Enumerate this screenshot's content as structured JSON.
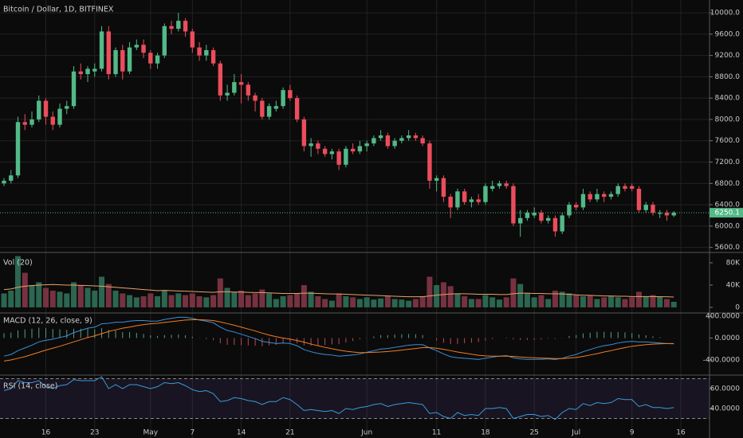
{
  "chart_data": [
    {
      "type": "candlestick",
      "title": "Bitcoin / Dollar, 1D, BITFINEX",
      "categories": [
        null,
        null,
        null,
        null,
        null,
        null,
        "16",
        null,
        null,
        null,
        null,
        null,
        null,
        "23",
        null,
        null,
        null,
        null,
        null,
        null,
        null,
        "May",
        null,
        null,
        null,
        null,
        null,
        "7",
        null,
        null,
        null,
        null,
        null,
        null,
        "14",
        null,
        null,
        null,
        null,
        null,
        null,
        "21",
        null,
        null,
        null,
        null,
        null,
        null,
        null,
        null,
        null,
        null,
        "Jun",
        null,
        null,
        null,
        null,
        null,
        null,
        null,
        null,
        null,
        "11",
        null,
        null,
        null,
        null,
        null,
        null,
        "18",
        null,
        null,
        null,
        null,
        null,
        null,
        "25",
        null,
        null,
        null,
        null,
        null,
        "Jul",
        null,
        null,
        null,
        null,
        null,
        null,
        null,
        "9",
        null,
        null,
        null,
        null,
        null,
        null,
        "16",
        null,
        null,
        null,
        null
      ],
      "open": [
        6800,
        6850,
        6950,
        7950,
        7900,
        8000,
        8350,
        8050,
        7900,
        8200,
        8250,
        8900,
        8850,
        8900,
        8950,
        9650,
        8850,
        9300,
        8900,
        9350,
        9400,
        9250,
        9050,
        9200,
        9750,
        9700,
        9850,
        9650,
        9350,
        9200,
        9300,
        9050,
        8450,
        8500,
        8700,
        8650,
        8450,
        8350,
        8050,
        8200,
        8250,
        8550,
        8400,
        8000,
        7500,
        7550,
        7450,
        7350,
        7400,
        7150,
        7450,
        7400,
        7500,
        7550,
        7650,
        7700,
        7500,
        7600,
        7650,
        7700,
        7650,
        7550,
        6850,
        6900,
        6550,
        6350,
        6650,
        6450,
        6500,
        6450,
        6700,
        6750,
        6800,
        6750,
        6050,
        6150,
        6200,
        6250,
        6100,
        6150,
        5900,
        6200,
        6400,
        6350,
        6600,
        6500,
        6600,
        6550,
        6600,
        6750,
        6750,
        6700,
        6300,
        6400,
        6230,
        6250,
        6200,
        null,
        null,
        null,
        null,
        null
      ],
      "high": [
        6900,
        7050,
        8050,
        8100,
        8150,
        8450,
        8400,
        8150,
        8300,
        8350,
        9000,
        9050,
        9000,
        9050,
        9750,
        9750,
        9350,
        9400,
        9450,
        9500,
        9500,
        9300,
        9250,
        9800,
        9850,
        10000,
        9900,
        9700,
        9450,
        9400,
        9350,
        9100,
        8650,
        8850,
        8850,
        8700,
        8500,
        8400,
        8300,
        8350,
        8600,
        8650,
        8450,
        8050,
        7650,
        7600,
        7500,
        7450,
        7450,
        7500,
        7550,
        7600,
        7600,
        7700,
        7800,
        7750,
        7650,
        7700,
        7800,
        7750,
        7700,
        7600,
        6950,
        6950,
        6600,
        6700,
        6700,
        6550,
        6600,
        6800,
        6850,
        6850,
        6850,
        6800,
        6300,
        6300,
        6350,
        6300,
        6200,
        6200,
        6250,
        6450,
        6450,
        6700,
        6650,
        6700,
        6650,
        6650,
        6800,
        6800,
        6800,
        6750,
        6450,
        6450,
        6300,
        6300,
        6280,
        null,
        null,
        null,
        null,
        null
      ],
      "low": [
        6750,
        6800,
        6900,
        7800,
        7850,
        7950,
        7900,
        7800,
        7850,
        8100,
        8200,
        8750,
        8700,
        8800,
        8900,
        8750,
        8800,
        8750,
        8850,
        9300,
        9150,
        8950,
        8950,
        9150,
        9600,
        9650,
        9550,
        9250,
        9100,
        9100,
        9000,
        8350,
        8350,
        8450,
        8300,
        8350,
        8150,
        8000,
        8000,
        8150,
        8200,
        8350,
        7950,
        7400,
        7300,
        7350,
        7300,
        7250,
        7050,
        7100,
        7350,
        7350,
        7400,
        7500,
        7600,
        7450,
        7450,
        7550,
        7600,
        7600,
        7500,
        6700,
        6650,
        6450,
        6150,
        6300,
        6400,
        6350,
        6400,
        6400,
        6650,
        6700,
        6700,
        6000,
        5800,
        6100,
        6150,
        6050,
        6050,
        5800,
        5850,
        6150,
        6300,
        6300,
        6450,
        6450,
        6450,
        6500,
        6550,
        6650,
        6650,
        6250,
        6250,
        6200,
        6150,
        6100,
        6170,
        null,
        null,
        null,
        null,
        null
      ],
      "close": [
        6850,
        6950,
        7950,
        7900,
        8000,
        8350,
        8050,
        7900,
        8200,
        8250,
        8900,
        8850,
        8950,
        8950,
        9650,
        8850,
        9300,
        8900,
        9350,
        9400,
        9250,
        9050,
        9200,
        9750,
        9700,
        9850,
        9650,
        9350,
        9200,
        9300,
        9050,
        8450,
        8500,
        8700,
        8650,
        8450,
        8350,
        8050,
        8250,
        8250,
        8550,
        8400,
        8000,
        7500,
        7550,
        7450,
        7350,
        7400,
        7150,
        7450,
        7400,
        7500,
        7550,
        7650,
        7700,
        7500,
        7600,
        7650,
        7700,
        7650,
        7550,
        6850,
        6900,
        6550,
        6350,
        6650,
        6450,
        6500,
        6450,
        6750,
        6750,
        6800,
        6750,
        6050,
        6150,
        6250,
        6250,
        6100,
        6150,
        5900,
        6200,
        6400,
        6350,
        6600,
        6500,
        6600,
        6550,
        6600,
        6750,
        6700,
        6700,
        6300,
        6400,
        6250,
        6250,
        6200,
        6250,
        null,
        null,
        null,
        null,
        null
      ],
      "up_color": "#53b987",
      "down_color": "#eb4d5c",
      "last_price": 6250.1,
      "ylim": [
        5520,
        10240
      ],
      "yticks": [
        {
          "value": 5600,
          "label": "5600.0"
        },
        {
          "value": 6000,
          "label": "6000.0"
        },
        {
          "value": 6400,
          "label": "6400.0"
        },
        {
          "value": 6800,
          "label": "6800.0"
        },
        {
          "value": 7200,
          "label": "7200.0"
        },
        {
          "value": 7600,
          "label": "7600.0"
        },
        {
          "value": 8000,
          "label": "8000.0"
        },
        {
          "value": 8400,
          "label": "8400.0"
        },
        {
          "value": 8800,
          "label": "8800.0"
        },
        {
          "value": 9200,
          "label": "9200.0"
        },
        {
          "value": 9600,
          "label": "9600.0"
        },
        {
          "value": 10000,
          "label": "10000.0"
        }
      ],
      "grid": true
    },
    {
      "type": "volume",
      "title": "Vol (20)",
      "values": [
        25000,
        30000,
        92000,
        62000,
        40000,
        45000,
        35000,
        30000,
        28000,
        25000,
        45000,
        40000,
        35000,
        30000,
        55000,
        42000,
        30000,
        25000,
        22000,
        18000,
        20000,
        25000,
        20000,
        30000,
        22000,
        25000,
        22000,
        25000,
        20000,
        18000,
        22000,
        52000,
        35000,
        28000,
        30000,
        22000,
        25000,
        32000,
        25000,
        15000,
        20000,
        22000,
        25000,
        40000,
        28000,
        20000,
        15000,
        12000,
        25000,
        20000,
        18000,
        15000,
        18000,
        14000,
        16000,
        20000,
        15000,
        14000,
        12000,
        15000,
        20000,
        55000,
        40000,
        45000,
        38000,
        25000,
        20000,
        15000,
        15000,
        22000,
        18000,
        14000,
        18000,
        52000,
        42000,
        25000,
        18000,
        22000,
        15000,
        30000,
        28000,
        25000,
        22000,
        20000,
        22000,
        15000,
        18000,
        20000,
        18000,
        15000,
        18000,
        28000,
        20000,
        22000,
        20000,
        15000,
        10000,
        null,
        null,
        null,
        null,
        null
      ],
      "ma": {
        "color": "#e8a06a",
        "values": [
          32000,
          33000,
          36000,
          38000,
          39000,
          40000,
          40500,
          41000,
          40500,
          40000,
          40000,
          39500,
          39000,
          38500,
          38000,
          37000,
          36000,
          35000,
          34000,
          33000,
          32000,
          31000,
          30000,
          30500,
          30000,
          29500,
          29000,
          28500,
          28000,
          27500,
          27000,
          28000,
          28000,
          27500,
          27500,
          27000,
          26500,
          26500,
          26000,
          25500,
          25000,
          25000,
          25000,
          25500,
          25500,
          25000,
          24500,
          24000,
          24000,
          23500,
          23000,
          22500,
          22000,
          21500,
          21000,
          20500,
          20000,
          19500,
          19000,
          19000,
          19000,
          20500,
          22000,
          23000,
          24000,
          24500,
          24500,
          24000,
          23500,
          23500,
          23500,
          23000,
          23000,
          24500,
          25500,
          25500,
          25000,
          25000,
          24500,
          24500,
          24000,
          23500,
          22500,
          22000,
          21500,
          21000,
          20500,
          20500,
          20000,
          20000,
          19500,
          19500,
          19500,
          19500,
          19000,
          19000,
          18500,
          null,
          null,
          null,
          null,
          null
        ]
      },
      "up_color": "#2b6650",
      "down_color": "#763240",
      "ylim": [
        -8600,
        97100
      ],
      "yticks": [
        0,
        {
          "value": 40000,
          "label": "40K"
        },
        {
          "value": 80000,
          "label": "80K"
        }
      ]
    },
    {
      "type": "macd",
      "title": "MACD (12, 26, close, 9)",
      "macd": {
        "color": "#3d8fd6",
        "values": [
          -330,
          -300,
          -230,
          -180,
          -130,
          -70,
          -40,
          -20,
          10,
          40,
          100,
          140,
          180,
          200,
          260,
          270,
          290,
          290,
          310,
          320,
          320,
          310,
          310,
          340,
          360,
          380,
          380,
          360,
          330,
          310,
          280,
          200,
          140,
          110,
          70,
          30,
          -10,
          -60,
          -80,
          -100,
          -90,
          -100,
          -140,
          -210,
          -250,
          -280,
          -300,
          -310,
          -330,
          -320,
          -310,
          -290,
          -260,
          -230,
          -200,
          -190,
          -170,
          -150,
          -130,
          -120,
          -120,
          -180,
          -230,
          -290,
          -340,
          -360,
          -370,
          -380,
          -390,
          -370,
          -350,
          -330,
          -320,
          -360,
          -380,
          -390,
          -390,
          -390,
          -380,
          -390,
          -370,
          -330,
          -300,
          -250,
          -210,
          -170,
          -140,
          -120,
          -90,
          -70,
          -60,
          -70,
          -70,
          -80,
          -90,
          -100,
          -105,
          null,
          null,
          null,
          null,
          null
        ]
      },
      "signal": {
        "color": "#f57c1f",
        "values": [
          -420,
          -400,
          -370,
          -340,
          -300,
          -260,
          -220,
          -185,
          -150,
          -110,
          -70,
          -30,
          10,
          40,
          80,
          120,
          150,
          180,
          200,
          225,
          245,
          260,
          270,
          285,
          300,
          315,
          330,
          335,
          335,
          330,
          320,
          295,
          265,
          235,
          200,
          165,
          130,
          90,
          55,
          25,
          0,
          -20,
          -45,
          -75,
          -110,
          -140,
          -170,
          -195,
          -220,
          -240,
          -255,
          -265,
          -265,
          -260,
          -255,
          -245,
          -235,
          -220,
          -205,
          -190,
          -175,
          -175,
          -185,
          -205,
          -230,
          -255,
          -275,
          -295,
          -315,
          -325,
          -330,
          -330,
          -330,
          -335,
          -345,
          -355,
          -360,
          -365,
          -370,
          -375,
          -375,
          -365,
          -355,
          -335,
          -310,
          -285,
          -255,
          -230,
          -200,
          -175,
          -150,
          -135,
          -120,
          -110,
          -105,
          -100,
          -100,
          null,
          null,
          null,
          null,
          null
        ]
      },
      "histogram": {
        "up_color": "#5a9e7c",
        "down_color": "#b94a55",
        "values": [
          90,
          100,
          140,
          160,
          170,
          190,
          180,
          165,
          160,
          150,
          170,
          170,
          170,
          160,
          180,
          150,
          140,
          110,
          110,
          95,
          75,
          50,
          40,
          55,
          60,
          65,
          50,
          25,
          -5,
          -20,
          -40,
          -95,
          -125,
          -125,
          -130,
          -135,
          -140,
          -150,
          -135,
          -125,
          -90,
          -80,
          -95,
          -135,
          -140,
          -140,
          -130,
          -115,
          -110,
          -80,
          -55,
          -25,
          5,
          30,
          55,
          55,
          65,
          70,
          75,
          70,
          55,
          -5,
          -45,
          -85,
          -110,
          -105,
          -95,
          -85,
          -75,
          -45,
          -20,
          0,
          10,
          -25,
          -35,
          -35,
          -30,
          -25,
          -10,
          -15,
          5,
          35,
          55,
          85,
          100,
          115,
          115,
          110,
          110,
          105,
          90,
          65,
          50,
          30,
          15,
          0,
          -5,
          null,
          null,
          null,
          null,
          null
        ]
      },
      "ylim": [
        -662,
        444
      ],
      "yticks": [
        {
          "value": -400,
          "label": "-400.0000"
        },
        {
          "value": 0,
          "label": "0.0000"
        },
        {
          "value": 400,
          "label": "400.0000"
        }
      ]
    },
    {
      "type": "rsi",
      "title": "RSI (14, close)",
      "values": [
        58,
        60,
        68,
        66,
        66,
        68,
        62,
        60,
        63,
        64,
        69,
        68,
        68,
        68,
        72,
        60,
        64,
        60,
        64,
        64,
        62,
        60,
        62,
        66,
        65,
        66,
        63,
        59,
        57,
        58,
        55,
        47,
        48,
        51,
        50,
        48,
        47,
        44,
        47,
        47,
        51,
        49,
        44,
        38,
        39,
        38,
        37,
        38,
        35,
        40,
        39,
        41,
        42,
        44,
        45,
        42,
        44,
        45,
        46,
        45,
        44,
        35,
        36,
        32,
        30,
        36,
        33,
        34,
        33,
        40,
        40,
        41,
        40,
        30,
        32,
        34,
        34,
        32,
        33,
        29,
        36,
        40,
        39,
        45,
        43,
        46,
        45,
        46,
        50,
        49,
        49,
        42,
        44,
        41,
        41,
        40,
        41,
        null,
        null,
        null,
        null,
        null
      ],
      "color": "#3b9ad9",
      "band_color": "#7e57c2",
      "bands": [
        30,
        70
      ],
      "ylim": [
        10.4,
        72.8
      ],
      "yticks": [
        {
          "value": 40,
          "label": "40.0000"
        },
        {
          "value": 60,
          "label": "60.0000"
        }
      ]
    }
  ]
}
